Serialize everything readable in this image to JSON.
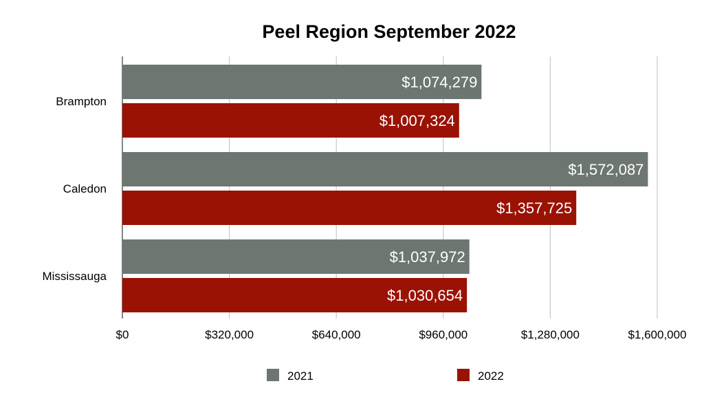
{
  "chart_data": {
    "type": "bar",
    "orientation": "horizontal",
    "title": "Peel Region September 2022",
    "categories": [
      "Brampton",
      "Caledon",
      "Mississauga"
    ],
    "series": [
      {
        "name": "2021",
        "color": "#6e7672",
        "values": [
          1074279,
          1572087,
          1037972
        ],
        "labels": [
          "$1,074,279",
          "$1,572,087",
          "$1,037,972"
        ]
      },
      {
        "name": "2022",
        "color": "#9a1204",
        "values": [
          1007324,
          1357725,
          1030654
        ],
        "labels": [
          "$1,007,324",
          "$1,357,725",
          "$1,030,654"
        ]
      }
    ],
    "xlim": [
      0,
      1600000
    ],
    "xticks": [
      0,
      320000,
      640000,
      960000,
      1280000,
      1600000
    ],
    "xtick_labels": [
      "$0",
      "$320,000",
      "$640,000",
      "$960,000",
      "$1,280,000",
      "$1,600,000"
    ],
    "xlabel": "",
    "ylabel": "",
    "grid": "vertical",
    "legend_position": "bottom"
  }
}
